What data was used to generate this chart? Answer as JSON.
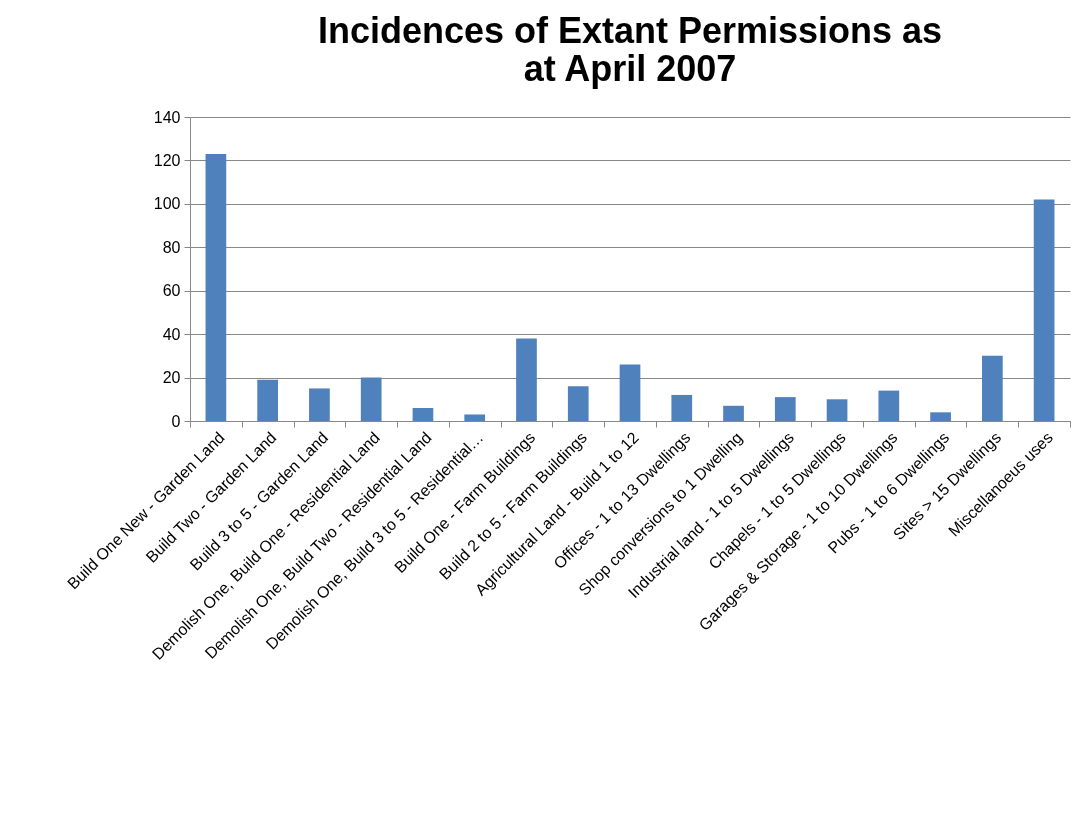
{
  "chart_data": {
    "type": "bar",
    "title": "Incidences of Extant Permissions as at April 2007",
    "categories": [
      "Build One New - Garden Land",
      "Build Two - Garden Land",
      "Build 3 to 5 - Garden Land",
      "Demolish One, Build One - Residential Land",
      "Demolish One, Build Two - Residential Land",
      "Demolish One, Build 3 to 5 - Residential…",
      "Build One - Farm Buildings",
      "Build 2 to 5 - Farm Buildings",
      "Agricultural Land - Build 1 to 12",
      "Offices - 1 to 13 Dwellings",
      "Shop conversions to 1 Dwelling",
      "Industrial land - 1 to 5 Dwellings",
      "Chapels - 1 to 5 Dwellings",
      "Garages & Storage - 1 to 10 Dwellings",
      "Pubs - 1 to 6 Dwellings",
      "Sites > 15 Dwellings",
      "Miscellanoeus uses"
    ],
    "values": [
      123,
      19,
      15,
      20,
      6,
      3,
      38,
      16,
      26,
      12,
      7,
      11,
      10,
      14,
      4,
      30,
      102
    ],
    "color": "#4f81bd",
    "ylim": [
      0,
      140
    ],
    "yticks": [
      0,
      20,
      40,
      60,
      80,
      100,
      120,
      140
    ],
    "grid": "y"
  }
}
